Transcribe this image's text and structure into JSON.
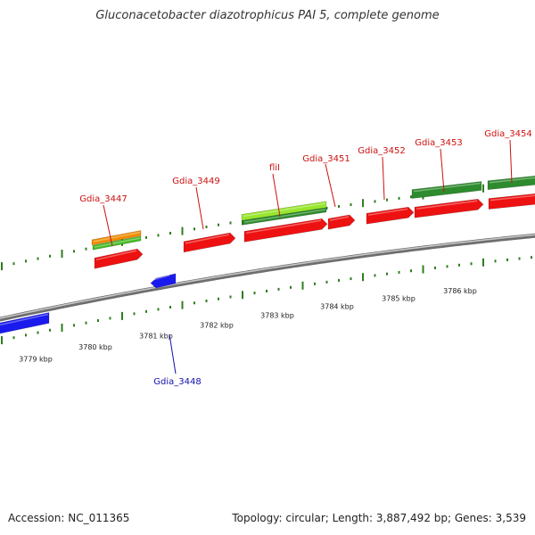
{
  "title": "Gluconacetobacter diazotrophicus PAI 5, complete genome",
  "footer": {
    "accession": "Accession: NC_011365",
    "summary": "Topology: circular; Length: 3,887,492 bp; Genes: 3,539"
  },
  "colors": {
    "backbone": "#808080",
    "tick": "#2e7d1e",
    "red_gene": "#ee1111",
    "blue_gene": "#1a1aee",
    "dark_green_gene": "#2e8b2e",
    "light_green_gene": "#99e62e",
    "orange_gene": "#f08c00",
    "red_label": "#cc1111",
    "blue_label": "#1111aa"
  },
  "scale_labels": [
    "3779 kbp",
    "3780 kbp",
    "3781 kbp",
    "3782 kbp",
    "3783 kbp",
    "3784 kbp",
    "3785 kbp",
    "3786 kbp"
  ],
  "gene_labels": [
    {
      "text": "Gdia_3447",
      "strand": "forward"
    },
    {
      "text": "Gdia_3449",
      "strand": "forward"
    },
    {
      "text": "fliI",
      "strand": "forward"
    },
    {
      "text": "Gdia_3451",
      "strand": "forward"
    },
    {
      "text": "Gdia_3452",
      "strand": "forward"
    },
    {
      "text": "Gdia_3453",
      "strand": "forward"
    },
    {
      "text": "Gdia_3454",
      "strand": "forward"
    },
    {
      "text": "Gdia_3448",
      "strand": "reverse"
    }
  ]
}
